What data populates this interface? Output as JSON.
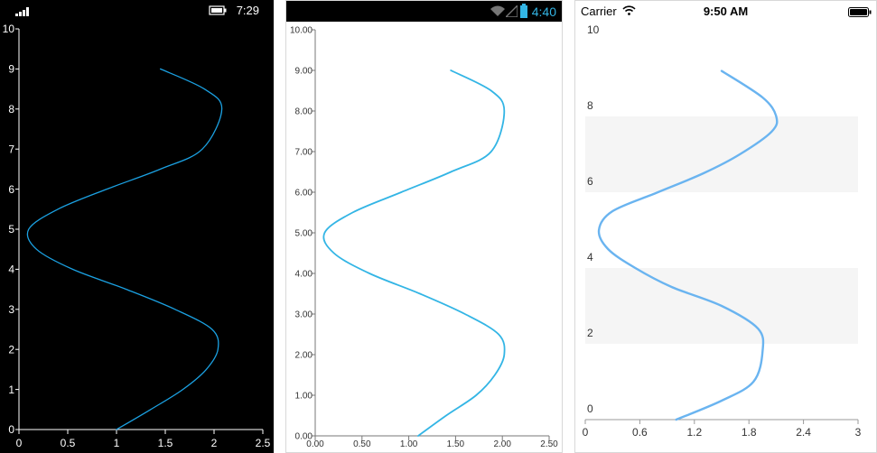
{
  "phones": [
    {
      "id": "windows",
      "status": {
        "time": "7:29"
      }
    },
    {
      "id": "android",
      "status": {
        "time": "4:40"
      }
    },
    {
      "id": "ios",
      "status": {
        "carrier": "Carrier",
        "time": "9:50 AM"
      }
    }
  ],
  "colors": {
    "line_windows": "#1ba1e2",
    "line_android": "#33b5e5",
    "line_ios": "#6ab4f0",
    "band_ios": "#f5f5f5",
    "status_android": "#33b5e5"
  },
  "chart_data": [
    {
      "type": "line",
      "x": [
        1.0,
        1.35,
        1.68,
        1.92,
        2.04,
        1.98,
        1.6,
        1.1,
        0.55,
        0.18,
        0.1,
        0.4,
        0.9,
        1.45,
        1.88,
        2.08,
        1.9,
        1.45
      ],
      "y": [
        0,
        0.5,
        1.0,
        1.5,
        2.0,
        2.5,
        3.0,
        3.5,
        4.0,
        4.5,
        5.0,
        5.5,
        6.0,
        6.5,
        7.0,
        8.0,
        8.5,
        9.0
      ],
      "xticks": [
        "0",
        "0.5",
        "1",
        "1.5",
        "2",
        "2.5"
      ],
      "yticks": [
        "0",
        "1",
        "2",
        "3",
        "4",
        "5",
        "6",
        "7",
        "8",
        "9",
        "10"
      ],
      "xlim": [
        0,
        2.5
      ],
      "ylim": [
        0,
        10
      ]
    },
    {
      "type": "line",
      "x": [
        1.1,
        1.4,
        1.72,
        1.92,
        2.02,
        1.96,
        1.6,
        1.12,
        0.58,
        0.2,
        0.1,
        0.4,
        0.92,
        1.45,
        1.88,
        2.02,
        1.88,
        1.45
      ],
      "y": [
        0,
        0.5,
        1.0,
        1.5,
        2.0,
        2.5,
        3.0,
        3.5,
        4.0,
        4.5,
        5.0,
        5.5,
        6.0,
        6.5,
        7.0,
        8.0,
        8.5,
        9.0
      ],
      "xticks": [
        "0.00",
        "0.50",
        "1.00",
        "1.50",
        "2.00",
        "2.50"
      ],
      "yticks": [
        "0.00",
        "1.00",
        "2.00",
        "3.00",
        "4.00",
        "5.00",
        "6.00",
        "7.00",
        "8.00",
        "9.00",
        "10.00"
      ],
      "xlim": [
        0,
        2.5
      ],
      "ylim": [
        0,
        10
      ]
    },
    {
      "type": "line",
      "x": [
        1.0,
        1.5,
        1.85,
        1.95,
        1.9,
        1.5,
        0.95,
        0.55,
        0.25,
        0.15,
        0.3,
        0.8,
        1.3,
        1.7,
        2.05,
        2.1,
        1.95,
        1.5
      ],
      "y": [
        0,
        0.5,
        1.0,
        1.8,
        2.4,
        3.0,
        3.5,
        4.0,
        4.5,
        5.0,
        5.5,
        6.0,
        6.5,
        7.0,
        7.6,
        8.0,
        8.5,
        9.2
      ],
      "xticks": [
        "0",
        "0.6",
        "1.2",
        "1.8",
        "2.4",
        "3"
      ],
      "yticks": [
        "0",
        "2",
        "4",
        "6",
        "8",
        "10"
      ],
      "xlim": [
        0,
        3
      ],
      "ylim": [
        0,
        10
      ]
    }
  ]
}
